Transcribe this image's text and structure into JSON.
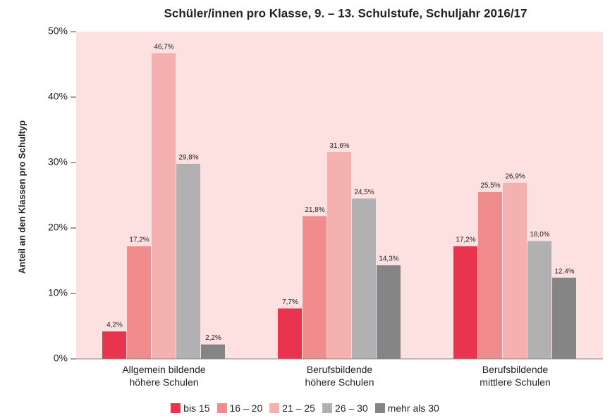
{
  "chart_data": {
    "type": "bar",
    "title": "Schüler/innen pro Klasse, 9. – 13. Schulstufe, Schuljahr 2016/17",
    "y_label": "Anteil an den Klassen pro Schultyp",
    "categories": [
      "Allgemein bildende höhere Schulen",
      "Berufsbildende höhere Schulen",
      "Berufsbildende mittlere Schulen"
    ],
    "series": [
      {
        "name": "bis 15",
        "color": "#e8344e",
        "values": [
          4.2,
          7.7,
          17.2
        ],
        "value_labels": [
          "4,2%",
          "7,7%",
          "17,2%"
        ]
      },
      {
        "name": "16 – 20",
        "color": "#f08c8c",
        "values": [
          17.2,
          21.8,
          25.5
        ],
        "value_labels": [
          "17,2%",
          "21,8%",
          "25,5%"
        ]
      },
      {
        "name": "21 – 25",
        "color": "#f5b0b0",
        "values": [
          46.7,
          31.6,
          26.9
        ],
        "value_labels": [
          "46,7%",
          "31,6%",
          "26,9%"
        ]
      },
      {
        "name": "26 – 30",
        "color": "#b1b1b4",
        "values": [
          29.8,
          24.5,
          18.0
        ],
        "value_labels": [
          "29,8%",
          "24,5%",
          "18,0%"
        ]
      },
      {
        "name": "mehr als 30",
        "color": "#858585",
        "values": [
          2.2,
          14.3,
          12.4
        ],
        "value_labels": [
          "2,2%",
          "14,3%",
          "12,4%"
        ]
      }
    ],
    "ylim": [
      0,
      50
    ],
    "yticks": [
      {
        "value": 0,
        "label": "0%"
      },
      {
        "value": 10,
        "label": "10%"
      },
      {
        "value": 20,
        "label": "20%"
      },
      {
        "value": 30,
        "label": "30%"
      },
      {
        "value": 40,
        "label": "40%"
      },
      {
        "value": 50,
        "label": "50%"
      }
    ],
    "background": "#fde1e1",
    "legend": "bottom"
  }
}
